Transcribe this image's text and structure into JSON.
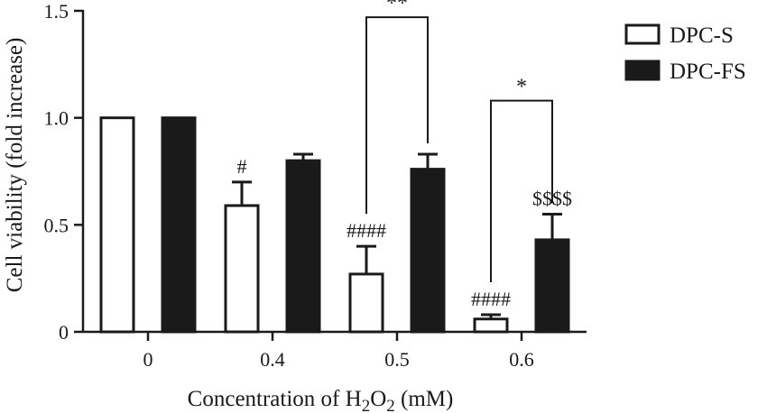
{
  "chart_data": {
    "type": "bar",
    "xlabel": "Concentration of H₂O₂ (mM)",
    "xlabel_parts": {
      "pre": "Concentration of H",
      "sub1": "2",
      "mid": "O",
      "sub2": "2",
      "post": " (mM)"
    },
    "ylabel": "Cell viability (fold increase)",
    "ylim": [
      0,
      1.5
    ],
    "yticks": [
      0,
      0.5,
      1.0,
      1.5
    ],
    "ytick_labels": [
      "0",
      "0.5",
      "1.0",
      "1.5"
    ],
    "categories": [
      "0",
      "0.4",
      "0.5",
      "0.6"
    ],
    "series": [
      {
        "name": "DPC-S",
        "fill": "#ffffff",
        "values": [
          1.0,
          0.59,
          0.27,
          0.06
        ],
        "errors": [
          0,
          0.11,
          0.13,
          0.02
        ],
        "annotations": [
          "",
          "#",
          "####",
          "####"
        ]
      },
      {
        "name": "DPC-FS",
        "fill": "#1a1a1a",
        "values": [
          1.0,
          0.8,
          0.76,
          0.43
        ],
        "errors": [
          0,
          0.03,
          0.07,
          0.12
        ],
        "annotations": [
          "",
          "",
          "",
          "$$$$"
        ]
      }
    ],
    "comparisons": [
      {
        "category_index": 2,
        "label": "**",
        "top_value": 1.47
      },
      {
        "category_index": 3,
        "label": "*",
        "top_value": 1.08
      }
    ],
    "legend_position": "top-right",
    "grid": false
  }
}
